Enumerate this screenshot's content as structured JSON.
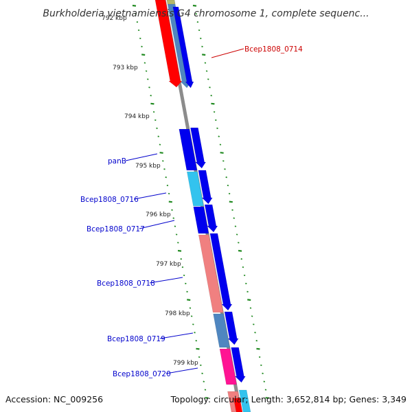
{
  "title": "Burkholderia vietnamiensis G4 chromosome 1, complete sequenc...",
  "footer": {
    "accession": "Accession: NC_009256",
    "summary": "Topology: circular; Length: 3,652,814 bp; Genes: 3,349"
  },
  "colors": {
    "backbone": "#8c8c8c",
    "tick": "#228b22",
    "blue": "#0000ee",
    "cyan": "#33c3ee",
    "steel": "#4f86c0",
    "red": "#ff0000",
    "salmon": "#f08080",
    "magenta": "#ff1493",
    "olive": "#b5b86a",
    "label_blue": "#0000cc",
    "label_red": "#cc0000"
  },
  "ticks": {
    "partial_top": "792 kbp",
    "labels": [
      "793 kbp",
      "794 kbp",
      "795 kbp",
      "796 kbp",
      "797 kbp",
      "798 kbp",
      "799 kbp"
    ]
  },
  "gene_labels": [
    {
      "text": "Bcep1808_0714",
      "color": "label_red"
    },
    {
      "text": "panB",
      "color": "label_blue"
    },
    {
      "text": "Bcep1808_0716",
      "color": "label_blue"
    },
    {
      "text": "Bcep1808_0717",
      "color": "label_blue"
    },
    {
      "text": "Bcep1808_0718",
      "color": "label_blue"
    },
    {
      "text": "Bcep1808_0719",
      "color": "label_blue"
    },
    {
      "text": "Bcep1808_0720",
      "color": "label_blue"
    }
  ],
  "features": [
    {
      "ring": "inner",
      "color": "red",
      "start": 0,
      "end": 127,
      "arrow": true
    },
    {
      "ring": "outer",
      "color": "steel",
      "start": 0,
      "end": 128,
      "arrow": true
    },
    {
      "ring": "outer2",
      "color": "blue",
      "start": 10,
      "end": 128,
      "arrow": true
    },
    {
      "ring": "outer",
      "color": "olive",
      "start": 0,
      "end": 6,
      "arrow": false
    },
    {
      "ring": "inner",
      "color": "blue",
      "start": 188,
      "end": 248,
      "arrow": false
    },
    {
      "ring": "outer",
      "color": "blue",
      "start": 186,
      "end": 245,
      "arrow": true
    },
    {
      "ring": "inner",
      "color": "cyan",
      "start": 250,
      "end": 300,
      "arrow": false
    },
    {
      "ring": "outer",
      "color": "blue",
      "start": 248,
      "end": 297,
      "arrow": true
    },
    {
      "ring": "inner",
      "color": "blue",
      "start": 301,
      "end": 340,
      "arrow": false
    },
    {
      "ring": "outer",
      "color": "blue",
      "start": 298,
      "end": 338,
      "arrow": true
    },
    {
      "ring": "inner",
      "color": "salmon",
      "start": 342,
      "end": 455,
      "arrow": false
    },
    {
      "ring": "outer",
      "color": "blue",
      "start": 340,
      "end": 452,
      "arrow": true
    },
    {
      "ring": "inner",
      "color": "steel",
      "start": 457,
      "end": 506,
      "arrow": false
    },
    {
      "ring": "outer",
      "color": "blue",
      "start": 454,
      "end": 502,
      "arrow": true
    },
    {
      "ring": "inner",
      "color": "magenta",
      "start": 508,
      "end": 560,
      "arrow": false
    },
    {
      "ring": "outer",
      "color": "blue",
      "start": 506,
      "end": 557,
      "arrow": true
    },
    {
      "ring": "inner",
      "color": "salmon",
      "start": 570,
      "end": 600,
      "arrow": false
    },
    {
      "ring": "inner2",
      "color": "red",
      "start": 580,
      "end": 600,
      "arrow": false
    },
    {
      "ring": "outer",
      "color": "cyan",
      "start": 568,
      "end": 600,
      "arrow": false
    }
  ]
}
